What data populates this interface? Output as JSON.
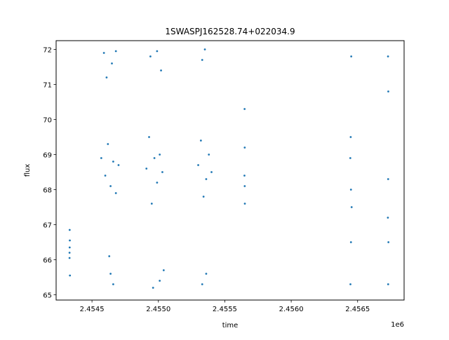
{
  "chart_data": {
    "type": "scatter",
    "title": "1SWASPJ162528.74+022034.9",
    "xlabel": "time",
    "ylabel": "flux",
    "x_offset_label": "1e6",
    "x_scale": 1000000,
    "xlim": [
      2.45423,
      2.45685
    ],
    "ylim": [
      64.85,
      72.25
    ],
    "x_ticks": [
      2.4545,
      2.455,
      2.4555,
      2.456,
      2.4565
    ],
    "x_tick_labels": [
      "2.4545",
      "2.4550",
      "2.4555",
      "2.4560",
      "2.4565"
    ],
    "y_ticks": [
      65,
      66,
      67,
      68,
      69,
      70,
      71,
      72
    ],
    "y_tick_labels": [
      "65",
      "66",
      "67",
      "68",
      "69",
      "70",
      "71",
      "72"
    ],
    "grid": false,
    "marker_color": "#1f77b4",
    "series": [
      {
        "points": [
          [
            2.454331,
            66.05
          ],
          [
            2.454332,
            66.35
          ],
          [
            2.454333,
            66.55
          ],
          [
            2.454332,
            66.85
          ],
          [
            2.454334,
            65.55
          ],
          [
            2.454331,
            66.2
          ],
          [
            2.45457,
            68.9
          ],
          [
            2.4546,
            68.4
          ],
          [
            2.45462,
            69.3
          ],
          [
            2.45464,
            68.1
          ],
          [
            2.45466,
            68.8
          ],
          [
            2.45468,
            67.9
          ],
          [
            2.4547,
            68.7
          ],
          [
            2.45459,
            71.9
          ],
          [
            2.45461,
            71.2
          ],
          [
            2.45465,
            71.6
          ],
          [
            2.45468,
            71.95
          ],
          [
            2.45463,
            66.1
          ],
          [
            2.45466,
            65.3
          ],
          [
            2.45464,
            65.6
          ],
          [
            2.45491,
            68.6
          ],
          [
            2.45493,
            69.5
          ],
          [
            2.45495,
            67.6
          ],
          [
            2.45497,
            68.9
          ],
          [
            2.45499,
            68.2
          ],
          [
            2.45501,
            69.0
          ],
          [
            2.45503,
            68.5
          ],
          [
            2.45494,
            71.8
          ],
          [
            2.45499,
            71.95
          ],
          [
            2.45502,
            71.4
          ],
          [
            2.45496,
            65.2
          ],
          [
            2.45501,
            65.4
          ],
          [
            2.45504,
            65.7
          ],
          [
            2.4553,
            68.7
          ],
          [
            2.45532,
            69.4
          ],
          [
            2.45534,
            67.8
          ],
          [
            2.45536,
            68.3
          ],
          [
            2.45538,
            69.0
          ],
          [
            2.4554,
            68.5
          ],
          [
            2.45533,
            71.7
          ],
          [
            2.45535,
            72.0
          ],
          [
            2.45533,
            65.3
          ],
          [
            2.45536,
            65.6
          ],
          [
            2.455648,
            68.4
          ],
          [
            2.45565,
            69.2
          ],
          [
            2.455651,
            67.6
          ],
          [
            2.455649,
            70.3
          ],
          [
            2.45565,
            68.1
          ],
          [
            2.456445,
            68.9
          ],
          [
            2.45645,
            68.0
          ],
          [
            2.456455,
            67.5
          ],
          [
            2.456448,
            69.5
          ],
          [
            2.456452,
            71.8
          ],
          [
            2.456446,
            65.3
          ],
          [
            2.45645,
            66.5
          ],
          [
            2.456728,
            67.2
          ],
          [
            2.45673,
            68.3
          ],
          [
            2.456732,
            66.5
          ],
          [
            2.456729,
            71.8
          ],
          [
            2.456731,
            70.8
          ],
          [
            2.45673,
            65.3
          ]
        ]
      }
    ]
  }
}
